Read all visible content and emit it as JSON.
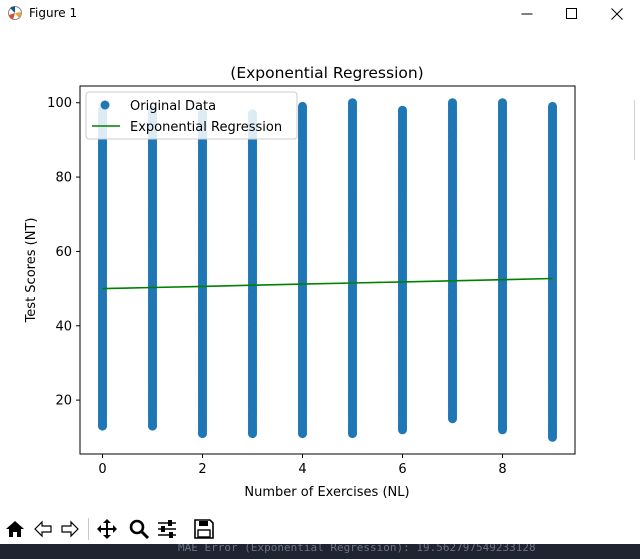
{
  "window": {
    "title": "Figure 1",
    "controls": {
      "minimize_icon": "minimize-icon",
      "maximize_icon": "maximize-icon",
      "close_icon": "close-icon"
    }
  },
  "chart_data": {
    "type": "scatter",
    "title": "(Exponential Regression)",
    "xlabel": "Number of Exercises (NL)",
    "ylabel": "Test Scores (NT)",
    "xlim": [
      -0.45,
      9.45
    ],
    "ylim": [
      5.5,
      104.5
    ],
    "xticks": [
      "0",
      "2",
      "4",
      "6",
      "8"
    ],
    "yticks": [
      "20",
      "40",
      "60",
      "80",
      "100"
    ],
    "grid": false,
    "legend": {
      "placement": "top-left",
      "entries": [
        "Original Data",
        "Exponential Regression"
      ]
    },
    "series": [
      {
        "name": "Original Data",
        "kind": "scatter",
        "color": "#1f77b4",
        "x": [
          0,
          1,
          2,
          3,
          4,
          5,
          6,
          7,
          8,
          9
        ],
        "y_min": [
          13,
          13,
          11,
          11,
          11,
          11,
          12,
          15,
          12,
          10
        ],
        "y_max": [
          98,
          98,
          97,
          97,
          99,
          100,
          98,
          100,
          100,
          99
        ]
      },
      {
        "name": "Exponential Regression",
        "kind": "line",
        "color": "#008000",
        "x": [
          0,
          1,
          2,
          3,
          4,
          5,
          6,
          7,
          8,
          9
        ],
        "y": [
          50.0,
          50.3,
          50.6,
          50.9,
          51.2,
          51.5,
          51.8,
          52.1,
          52.4,
          52.7
        ]
      }
    ]
  },
  "toolbar": {
    "items": [
      {
        "name": "home-button",
        "icon": "home-icon"
      },
      {
        "name": "back-button",
        "icon": "back-arrow-icon"
      },
      {
        "name": "forward-button",
        "icon": "forward-arrow-icon"
      },
      {
        "name": "pan-button",
        "icon": "move-icon"
      },
      {
        "name": "zoom-button",
        "icon": "magnifier-icon"
      },
      {
        "name": "configure-subplots-button",
        "icon": "sliders-icon"
      },
      {
        "name": "save-button",
        "icon": "floppy-disk-icon"
      }
    ]
  },
  "terminal": {
    "text": "MAE Error (Exponential Regression): 19.562797549233128"
  }
}
